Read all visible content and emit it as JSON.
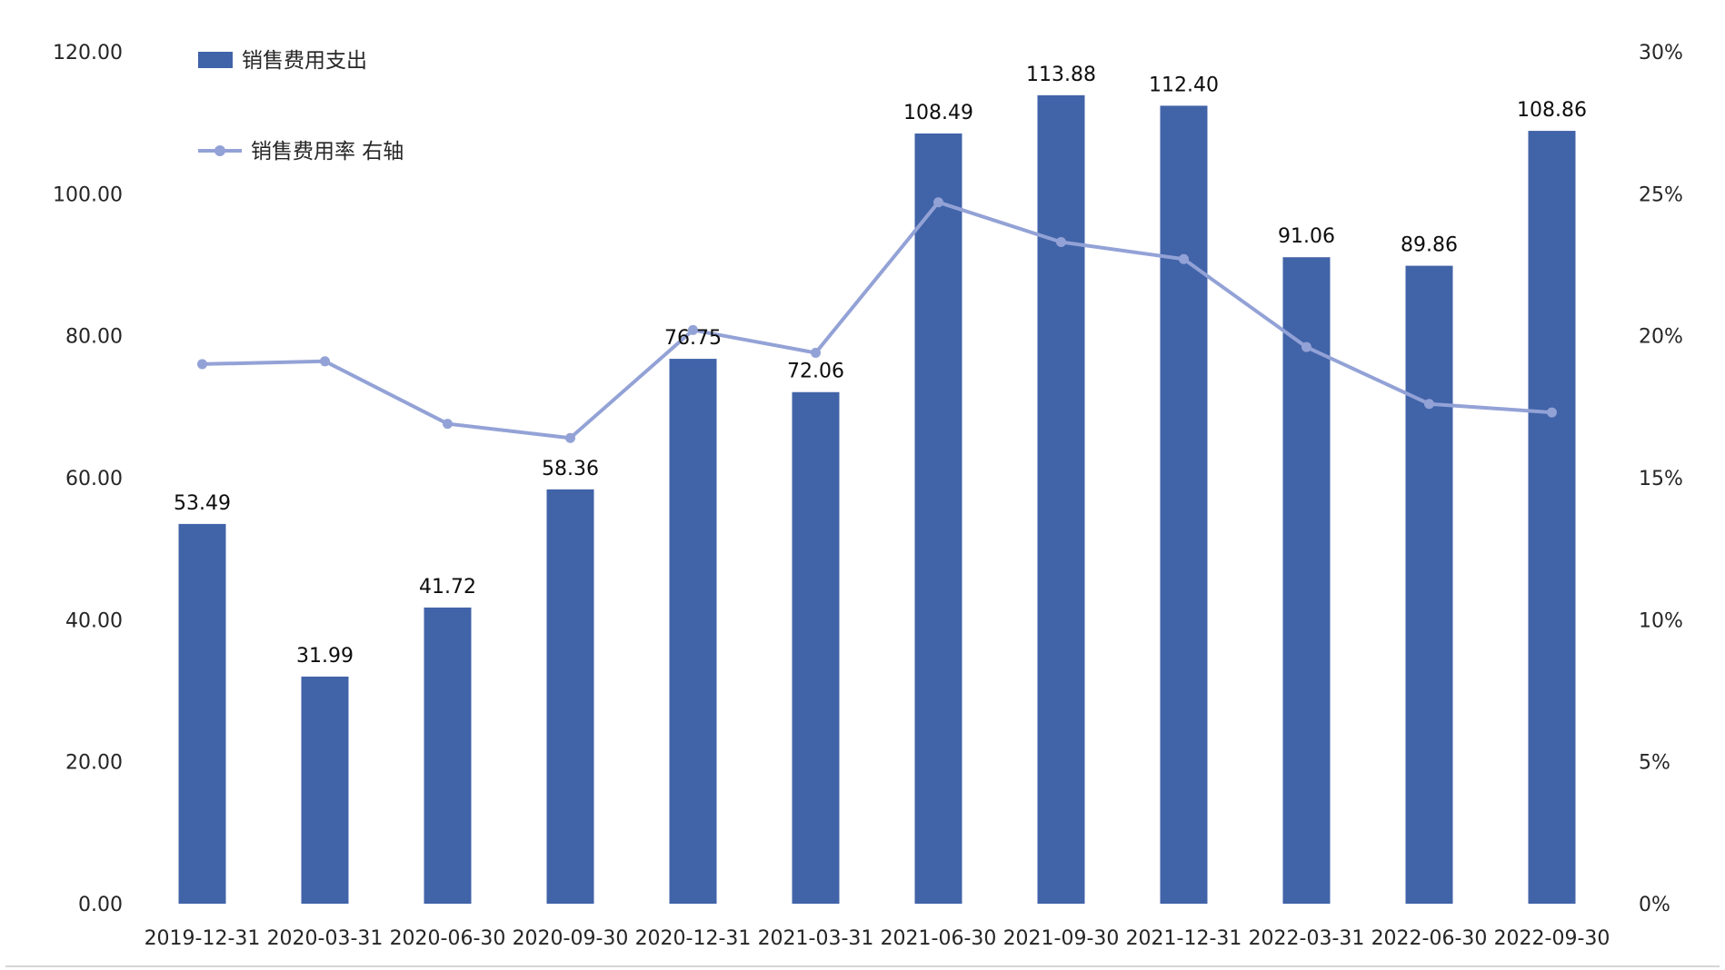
{
  "chart_data": {
    "type": "bar",
    "subtype": "combo-bar-line-dual-axis",
    "background": "#FFFFFF",
    "grid": false,
    "legend_position": "top-left-inside",
    "categories": [
      "2019-12-31",
      "2020-03-31",
      "2020-06-30",
      "2020-09-30",
      "2020-12-31",
      "2021-03-31",
      "2021-06-30",
      "2021-09-30",
      "2021-12-31",
      "2022-03-31",
      "2022-06-30",
      "2022-09-30"
    ],
    "series": [
      {
        "name": "销售费用支出",
        "type": "bar",
        "axis": "left",
        "color": "#4163A8",
        "values": [
          53.49,
          31.99,
          41.72,
          58.36,
          76.75,
          72.06,
          108.49,
          113.88,
          112.4,
          91.06,
          89.86,
          108.86
        ],
        "data_labels": [
          "53.49",
          "31.99",
          "41.72",
          "58.36",
          "76.75",
          "72.06",
          "108.49",
          "113.88",
          "112.40",
          "91.06",
          "89.86",
          "108.86"
        ]
      },
      {
        "name": "销售费用率 右轴",
        "type": "line",
        "axis": "right",
        "color": "#93A2D6",
        "unit": "%",
        "values": [
          19.0,
          19.1,
          16.9,
          16.4,
          20.2,
          19.4,
          24.7,
          23.3,
          22.7,
          19.6,
          17.6,
          17.3
        ]
      }
    ],
    "left_axis": {
      "min": 0,
      "max": 120,
      "step": 20,
      "tick_labels": [
        "0.00",
        "20.00",
        "40.00",
        "60.00",
        "80.00",
        "100.00",
        "120.00"
      ]
    },
    "right_axis": {
      "min": 0,
      "max": 30,
      "step": 5,
      "tick_labels": [
        "0%",
        "5%",
        "10%",
        "15%",
        "20%",
        "25%",
        "30%"
      ]
    }
  }
}
